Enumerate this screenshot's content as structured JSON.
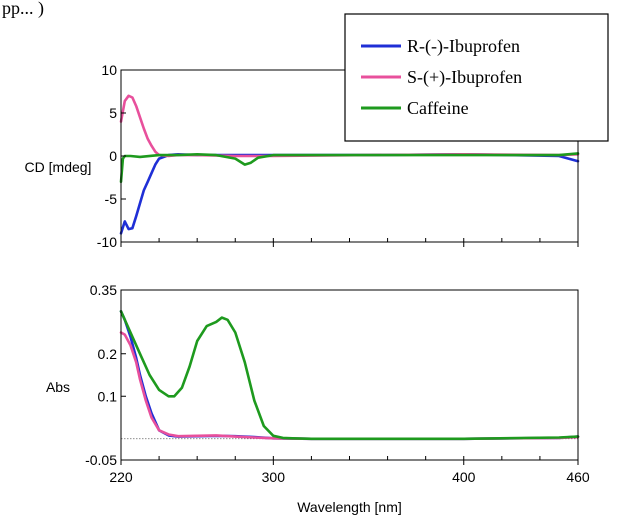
{
  "page": {
    "partial_caption": "pp... )"
  },
  "legend": {
    "placement": "top-right",
    "entries": [
      {
        "label": "R-(-)-Ibuprofen",
        "color": "#1f2fd6"
      },
      {
        "label": "S-(+)-Ibuprofen",
        "color": "#e8509c"
      },
      {
        "label": "Caffeine",
        "color": "#1e9a1e"
      }
    ]
  },
  "chart_data": [
    {
      "type": "line",
      "ylabel": "CD [mdeg]",
      "xlabel": "",
      "xlim": [
        220,
        460
      ],
      "ylim": [
        -10,
        10
      ],
      "yticks": [
        "10",
        "5",
        "0",
        "-5",
        "-10"
      ],
      "ytick_values": [
        10,
        5,
        0,
        -5,
        -10
      ],
      "xticks": [
        220,
        300,
        400,
        460
      ],
      "series": [
        {
          "name": "R-(-)-Ibuprofen",
          "color": "#1f2fd6",
          "x": [
            220,
            222,
            224,
            226,
            228,
            230,
            232,
            234,
            236,
            238,
            240,
            245,
            250,
            260,
            280,
            300,
            350,
            400,
            450,
            460
          ],
          "y": [
            -9,
            -7.6,
            -8.5,
            -8.4,
            -7,
            -5.5,
            -4,
            -3,
            -2,
            -1,
            -0.3,
            0.1,
            0.2,
            0.1,
            0.1,
            0.1,
            0.1,
            0.2,
            0,
            -0.6
          ]
        },
        {
          "name": "S-(+)-Ibuprofen",
          "color": "#e8509c",
          "x": [
            220,
            221,
            222,
            224,
            226,
            228,
            230,
            232,
            234,
            236,
            238,
            240,
            245,
            250,
            260,
            280,
            300,
            350,
            400,
            450,
            460
          ],
          "y": [
            4,
            5.2,
            6.4,
            7,
            6.8,
            5.8,
            4.5,
            3.2,
            2,
            1.2,
            0.5,
            0.1,
            0,
            0.1,
            0.1,
            0,
            0,
            0.1,
            0.2,
            0.1,
            0.2
          ]
        },
        {
          "name": "Caffeine",
          "color": "#1e9a1e",
          "x": [
            220,
            221,
            222,
            225,
            230,
            240,
            250,
            260,
            270,
            280,
            285,
            288,
            292,
            300,
            350,
            400,
            450,
            460
          ],
          "y": [
            -3,
            -0.3,
            0,
            0,
            -0.1,
            0.1,
            0.1,
            0.2,
            0.1,
            -0.3,
            -1,
            -0.8,
            -0.2,
            0.1,
            0.1,
            0.1,
            0.1,
            0.3
          ]
        }
      ]
    },
    {
      "type": "line",
      "ylabel": "Abs",
      "xlabel": "Wavelength [nm]",
      "xlim": [
        220,
        460
      ],
      "ylim": [
        -0.05,
        0.35
      ],
      "yticks": [
        "0.35",
        "0.2",
        "0.1",
        "-0.05"
      ],
      "ytick_values": [
        0.35,
        0.2,
        0.1,
        -0.05
      ],
      "xticks": [
        "220",
        "300",
        "400",
        "460"
      ],
      "xtick_values": [
        220,
        300,
        400,
        460
      ],
      "baseline_y": 0,
      "series": [
        {
          "name": "R-(-)-Ibuprofen",
          "color": "#1f2fd6",
          "x": [
            220,
            222,
            225,
            228,
            230,
            233,
            236,
            240,
            245,
            250,
            260,
            270,
            280,
            290,
            300,
            320,
            350,
            400,
            450,
            460
          ],
          "y": [
            0.3,
            0.28,
            0.24,
            0.19,
            0.15,
            0.1,
            0.06,
            0.02,
            0.008,
            0.005,
            0.006,
            0.007,
            0.006,
            0.004,
            0.001,
            0,
            0,
            0,
            0.002,
            0.005
          ]
        },
        {
          "name": "S-(+)-Ibuprofen",
          "color": "#e8509c",
          "x": [
            220,
            222,
            225,
            228,
            230,
            233,
            236,
            240,
            245,
            250,
            260,
            270,
            280,
            290,
            300,
            320,
            350,
            400,
            450,
            460
          ],
          "y": [
            0.25,
            0.245,
            0.22,
            0.18,
            0.14,
            0.09,
            0.05,
            0.02,
            0.01,
            0.006,
            0.007,
            0.008,
            0.005,
            0.003,
            0.001,
            0,
            0,
            0,
            0.002,
            0.004
          ]
        },
        {
          "name": "Caffeine",
          "color": "#1e9a1e",
          "x": [
            220,
            225,
            230,
            235,
            240,
            245,
            248,
            252,
            256,
            260,
            265,
            270,
            273,
            276,
            280,
            285,
            290,
            295,
            300,
            305,
            310,
            320,
            350,
            400,
            450,
            460
          ],
          "y": [
            0.3,
            0.25,
            0.2,
            0.15,
            0.115,
            0.1,
            0.1,
            0.12,
            0.17,
            0.23,
            0.265,
            0.275,
            0.285,
            0.28,
            0.25,
            0.18,
            0.09,
            0.03,
            0.007,
            0.002,
            0.001,
            0,
            0,
            0,
            0.003,
            0.005
          ]
        }
      ]
    }
  ]
}
